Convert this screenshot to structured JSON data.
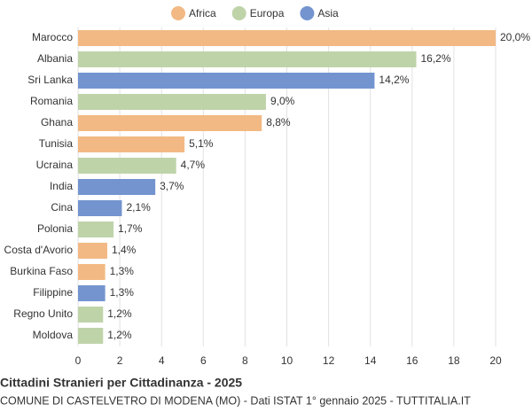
{
  "chart_data": {
    "type": "hbar",
    "title": "Cittadini Stranieri per Cittadinanza - 2025",
    "subtitle": "COMUNE DI CASTELVETRO DI MODENA (MO) - Dati ISTAT 1° gennaio 2025 - TUTTITALIA.IT",
    "legend": [
      {
        "name": "Africa",
        "color": "#f2b984"
      },
      {
        "name": "Europa",
        "color": "#bfd3a9"
      },
      {
        "name": "Asia",
        "color": "#7394cf"
      }
    ],
    "categories": [
      "Marocco",
      "Albania",
      "Sri Lanka",
      "Romania",
      "Ghana",
      "Tunisia",
      "Ucraina",
      "India",
      "Cina",
      "Polonia",
      "Costa d'Avorio",
      "Burkina Faso",
      "Filippine",
      "Regno Unito",
      "Moldova"
    ],
    "values": [
      20.0,
      16.2,
      14.2,
      9.0,
      8.8,
      5.1,
      4.7,
      3.7,
      2.1,
      1.7,
      1.4,
      1.3,
      1.3,
      1.2,
      1.2
    ],
    "value_labels": [
      "20,0%",
      "16,2%",
      "14,2%",
      "9,0%",
      "8,8%",
      "5,1%",
      "4,7%",
      "3,7%",
      "2,1%",
      "1,7%",
      "1,4%",
      "1,3%",
      "1,3%",
      "1,2%",
      "1,2%"
    ],
    "colors": [
      "#f2b984",
      "#bfd3a9",
      "#7394cf",
      "#bfd3a9",
      "#f2b984",
      "#f2b984",
      "#bfd3a9",
      "#7394cf",
      "#7394cf",
      "#bfd3a9",
      "#f2b984",
      "#f2b984",
      "#7394cf",
      "#bfd3a9",
      "#bfd3a9"
    ],
    "xlim": [
      0,
      20
    ],
    "xticks": [
      0,
      2,
      4,
      6,
      8,
      10,
      12,
      14,
      16,
      18,
      20
    ],
    "grid": true
  }
}
